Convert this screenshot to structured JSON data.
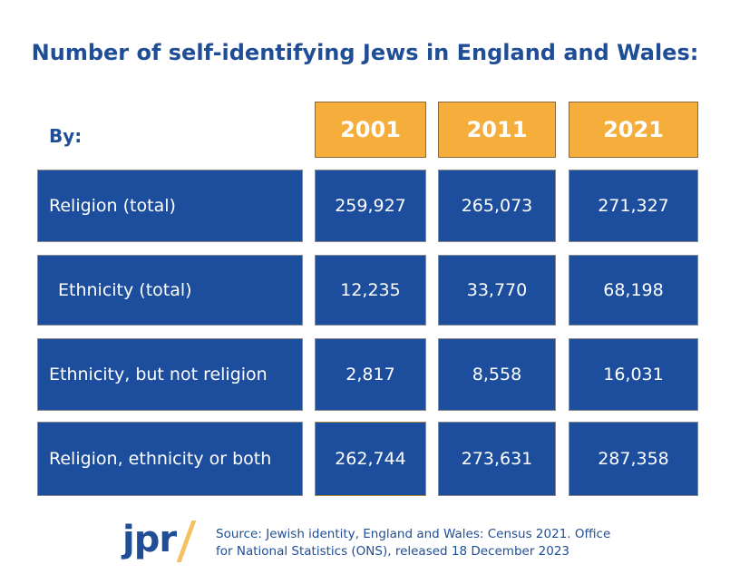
{
  "title": "Number of self-identifying Jews in England and Wales:",
  "by_label": "By:",
  "years": [
    "2001",
    "2011",
    "2021"
  ],
  "rows": [
    {
      "label": "Religion (total)",
      "values": [
        "259,927",
        "265,073",
        "271,327"
      ]
    },
    {
      "label": "Ethnicity (total)",
      "values": [
        "12,235",
        "33,770",
        "68,198"
      ]
    },
    {
      "label": "Ethnicity, but not religion",
      "values": [
        "2,817",
        "8,558",
        "16,031"
      ]
    },
    {
      "label": "Religion, ethnicity or both",
      "values": [
        "262,744",
        "273,631",
        "287,358"
      ]
    }
  ],
  "footer": {
    "logo": "jpr",
    "source_line1": "Source: Jewish identity, England and Wales: Census 2021. Office",
    "source_line2": "for National Statistics (ONS), released 18 December 2023"
  },
  "colors": {
    "blue": "#1d4e9e",
    "orange": "#f5ad3c",
    "title": "#1f4e96"
  }
}
